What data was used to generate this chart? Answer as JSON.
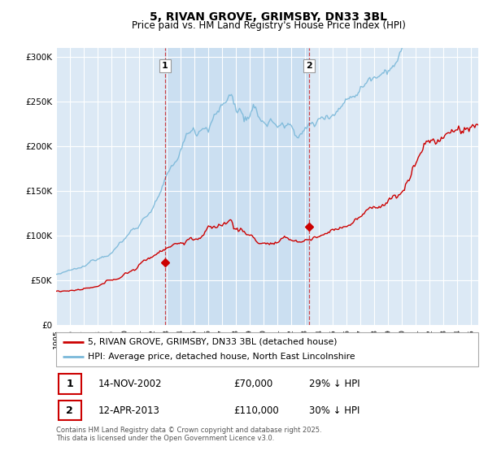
{
  "title_line1": "5, RIVAN GROVE, GRIMSBY, DN33 3BL",
  "title_line2": "Price paid vs. HM Land Registry's House Price Index (HPI)",
  "background_color": "#ffffff",
  "plot_bg_color": "#dce9f5",
  "fill_between_color": "#c5dcf0",
  "grid_color": "#ffffff",
  "purchase1_date": 2002.87,
  "purchase1_price": 70000,
  "purchase1_label": "1",
  "purchase2_date": 2013.28,
  "purchase2_price": 110000,
  "purchase2_label": "2",
  "legend_line1": "5, RIVAN GROVE, GRIMSBY, DN33 3BL (detached house)",
  "legend_line2": "HPI: Average price, detached house, North East Lincolnshire",
  "table_row1": [
    "1",
    "14-NOV-2002",
    "£70,000",
    "29% ↓ HPI"
  ],
  "table_row2": [
    "2",
    "12-APR-2013",
    "£110,000",
    "30% ↓ HPI"
  ],
  "footer": "Contains HM Land Registry data © Crown copyright and database right 2025.\nThis data is licensed under the Open Government Licence v3.0.",
  "hpi_color": "#7ab8d9",
  "price_color": "#cc0000",
  "vline_color": "#cc0000",
  "xmin": 1995,
  "xmax": 2025.5,
  "ymin": 0,
  "ymax": 310000,
  "yticks": [
    0,
    50000,
    100000,
    150000,
    200000,
    250000,
    300000
  ],
  "ytick_labels": [
    "£0",
    "£50K",
    "£100K",
    "£150K",
    "£200K",
    "£250K",
    "£300K"
  ]
}
